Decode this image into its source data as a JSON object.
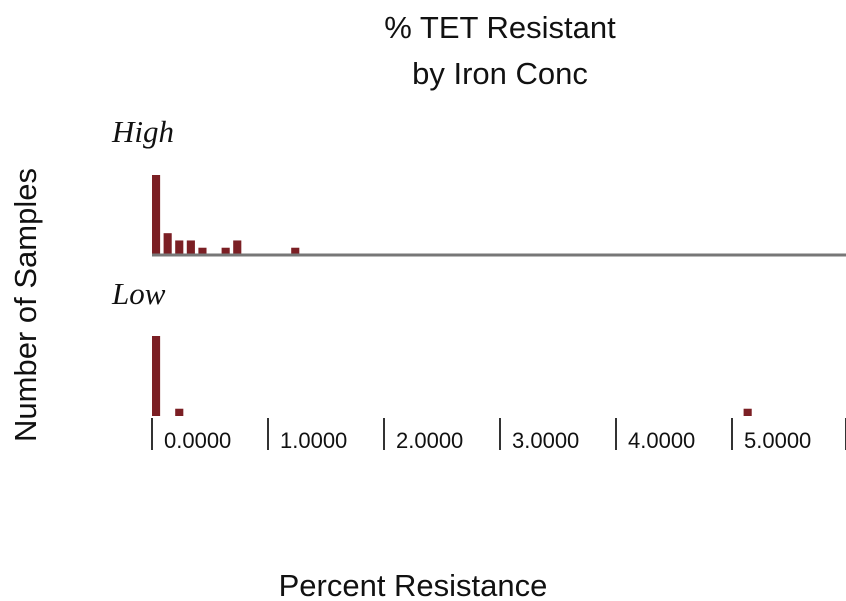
{
  "chart_data": {
    "type": "histogram",
    "title": "% TET Resistant",
    "subtitle": "by Iron Conc",
    "xlabel": "Percent Resistance",
    "ylabel": "Number of Samples",
    "bins": [
      0,
      0.1,
      0.2,
      0.3,
      0.4,
      0.5,
      0.6,
      0.7,
      0.8,
      0.9,
      1.0,
      1.1,
      1.2,
      1.3,
      1.4,
      1.5,
      1.6,
      1.7,
      1.8,
      1.9,
      2.0,
      2.1,
      2.2,
      2.3,
      2.4,
      2.5,
      2.6,
      2.7,
      2.8,
      2.9,
      3.0,
      3.1,
      3.2,
      3.3,
      3.4,
      3.5,
      3.6,
      3.7,
      3.8,
      3.9,
      4.0,
      4.1,
      4.2,
      4.3,
      4.4,
      4.5,
      4.6,
      4.7,
      4.8,
      4.9,
      5.0,
      5.1,
      5.2,
      5.3
    ],
    "series": [
      {
        "name": "High",
        "color": "#7b1f24",
        "values": [
          11,
          3,
          2,
          2,
          1,
          0,
          1,
          2,
          0,
          0,
          0,
          0,
          1,
          0,
          0,
          0,
          0,
          0,
          0,
          0,
          0,
          0,
          0,
          0,
          0,
          0,
          0,
          0,
          0,
          0,
          0,
          0,
          0,
          0,
          0,
          0,
          0,
          0,
          0,
          0,
          0,
          0,
          0,
          0,
          0,
          0,
          0,
          0,
          0,
          0,
          0,
          0,
          0
        ]
      },
      {
        "name": "Low",
        "color": "#7b1f24",
        "values": [
          11,
          0,
          1,
          0,
          0,
          0,
          0,
          0,
          0,
          0,
          0,
          0,
          0,
          0,
          0,
          0,
          0,
          0,
          0,
          0,
          0,
          0,
          0,
          0,
          0,
          0,
          0,
          0,
          0,
          0,
          0,
          0,
          0,
          0,
          0,
          0,
          0,
          0,
          0,
          0,
          0,
          0,
          0,
          0,
          0,
          0,
          0,
          0,
          0,
          0,
          0,
          1,
          0
        ]
      }
    ],
    "xlim": [
      0,
      6
    ],
    "xticks": [
      {
        "value": 0,
        "label": "0.0000"
      },
      {
        "value": 1,
        "label": "1.0000"
      },
      {
        "value": 2,
        "label": "2.0000"
      },
      {
        "value": 3,
        "label": "3.0000"
      },
      {
        "value": 4,
        "label": "4.0000"
      },
      {
        "value": 5,
        "label": "5.0000"
      }
    ],
    "ylim": [
      0,
      11
    ]
  }
}
